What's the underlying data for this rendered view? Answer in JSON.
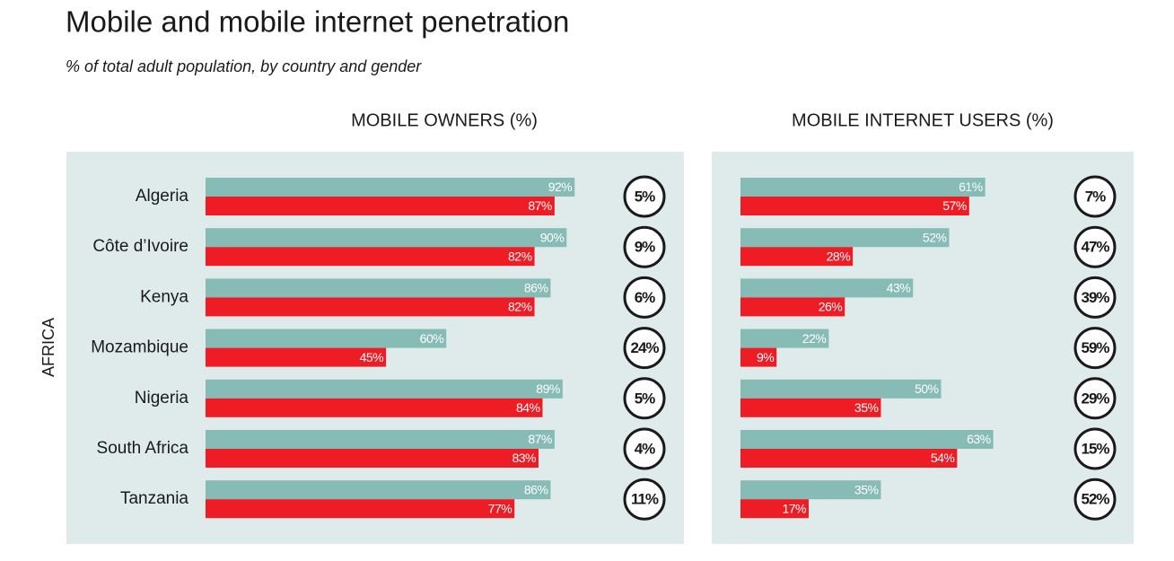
{
  "title": "Mobile and mobile internet penetration",
  "subtitle": "% of total adult population, by country and gender",
  "region": "AFRICA",
  "chart_data": [
    {
      "type": "bar",
      "orientation": "horizontal",
      "title": "MOBILE OWNERS (%)",
      "categories": [
        "Algeria",
        "Côte d’Ivoire",
        "Kenya",
        "Mozambique",
        "Nigeria",
        "South Africa",
        "Tanzania"
      ],
      "series": [
        {
          "color": "#86bbb6",
          "values": [
            92,
            90,
            86,
            60,
            89,
            87,
            86
          ],
          "value_labels": [
            "92%",
            "90%",
            "86%",
            "60%",
            "89%",
            "87%",
            "86%"
          ]
        },
        {
          "color": "#ee1c24",
          "values": [
            87,
            82,
            82,
            45,
            84,
            83,
            77
          ],
          "value_labels": [
            "87%",
            "82%",
            "82%",
            "45%",
            "84%",
            "83%",
            "77%"
          ]
        }
      ],
      "gap": {
        "values": [
          5,
          9,
          6,
          24,
          5,
          4,
          11
        ],
        "value_labels": [
          "5%",
          "9%",
          "6%",
          "24%",
          "5%",
          "4%",
          "11%"
        ]
      },
      "xlim": [
        0,
        100
      ]
    },
    {
      "type": "bar",
      "orientation": "horizontal",
      "title": "MOBILE INTERNET USERS (%)",
      "categories": [
        null,
        null,
        null,
        null,
        null,
        null,
        null
      ],
      "series": [
        {
          "color": "#86bbb6",
          "values": [
            61,
            52,
            43,
            22,
            50,
            63,
            35
          ],
          "value_labels": [
            "61%",
            "52%",
            "43%",
            "22%",
            "50%",
            "63%",
            "35%"
          ]
        },
        {
          "color": "#ee1c24",
          "values": [
            57,
            28,
            26,
            9,
            35,
            54,
            17
          ],
          "value_labels": [
            "57%",
            "28%",
            "26%",
            "9%",
            "35%",
            "54%",
            "17%"
          ]
        }
      ],
      "gap": {
        "values": [
          7,
          47,
          39,
          59,
          29,
          15,
          52
        ],
        "value_labels": [
          "7%",
          "47%",
          "39%",
          "59%",
          "29%",
          "15%",
          "52%"
        ]
      },
      "xlim": [
        0,
        100
      ]
    }
  ]
}
